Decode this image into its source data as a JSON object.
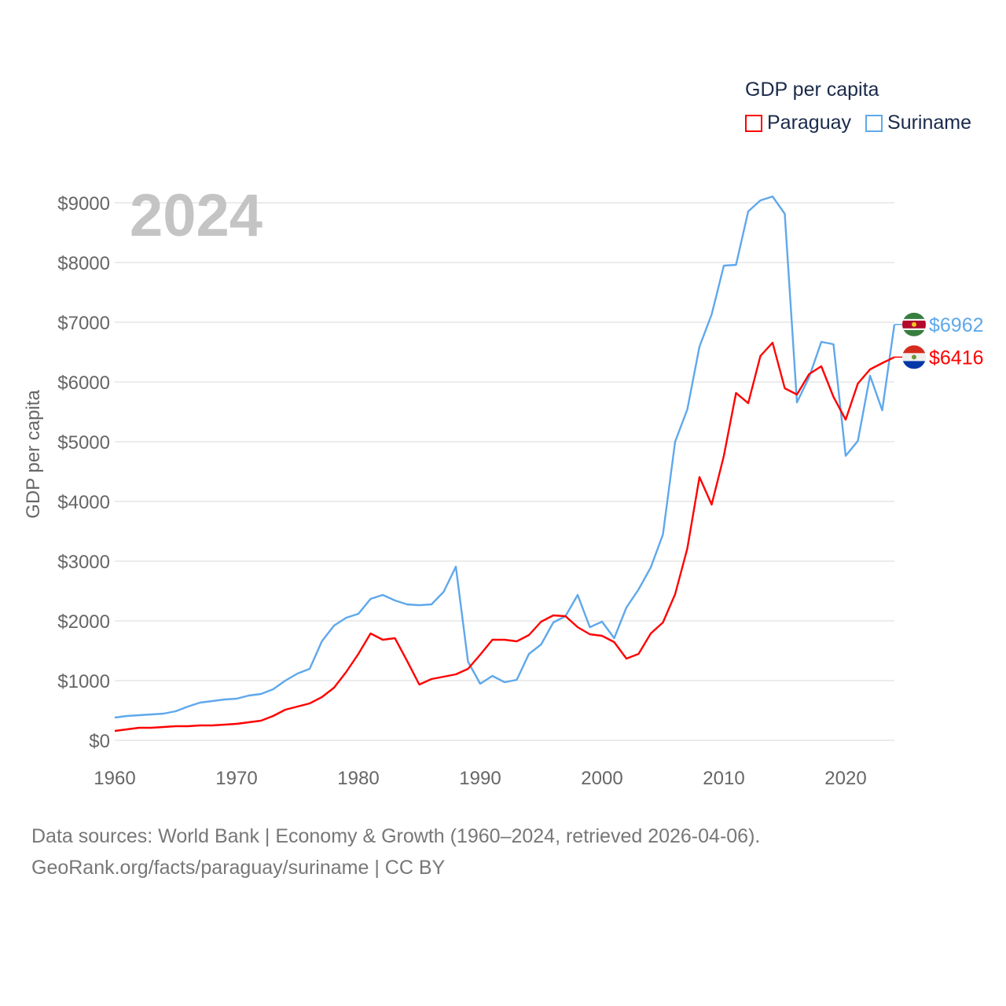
{
  "chart_data": {
    "type": "line",
    "title": "GDP per capita",
    "year_label": "2024",
    "xlabel": "",
    "ylabel": "GDP per capita",
    "xlim": [
      1960,
      2024
    ],
    "ylim": [
      0,
      9000
    ],
    "x_ticks": [
      1960,
      1970,
      1980,
      1990,
      2000,
      2010,
      2020
    ],
    "y_ticks": [
      0,
      1000,
      2000,
      3000,
      4000,
      5000,
      6000,
      7000,
      8000,
      9000
    ],
    "y_tick_labels": [
      "$0",
      "$1000",
      "$2000",
      "$3000",
      "$4000",
      "$5000",
      "$6000",
      "$7000",
      "$8000",
      "$9000"
    ],
    "grid": true,
    "legend_placement": "top-right",
    "x_start": 1960,
    "series": [
      {
        "name": "Paraguay",
        "color": "#ff0000",
        "end_label": "$6416",
        "values": [
          158,
          184,
          211,
          211,
          224,
          237,
          237,
          250,
          250,
          263,
          276,
          303,
          329,
          408,
          513,
          566,
          618,
          724,
          882,
          1145,
          1447,
          1789,
          1684,
          1711,
          1329,
          934,
          1026,
          1066,
          1105,
          1197,
          1434,
          1684,
          1684,
          1658,
          1763,
          1987,
          2092,
          2079,
          1895,
          1776,
          1750,
          1645,
          1368,
          1447,
          1789,
          1974,
          2447,
          3211,
          4408,
          3947,
          4763,
          5816,
          5645,
          6434,
          6658,
          5895,
          5789,
          6132,
          6263,
          5750,
          5368,
          5974,
          6211,
          6316,
          6416
        ]
      },
      {
        "name": "Suriname",
        "color": "#5ea8ec",
        "end_label": "$6962",
        "values": [
          382,
          408,
          421,
          434,
          447,
          487,
          566,
          632,
          658,
          684,
          697,
          750,
          776,
          855,
          1000,
          1118,
          1197,
          1658,
          1921,
          2053,
          2118,
          2368,
          2434,
          2342,
          2276,
          2263,
          2276,
          2487,
          2908,
          1316,
          947,
          1079,
          974,
          1013,
          1447,
          1605,
          1974,
          2079,
          2434,
          1895,
          1987,
          1711,
          2224,
          2526,
          2895,
          3447,
          5000,
          5539,
          6592,
          7132,
          7947,
          7961,
          8855,
          9039,
          9105,
          8816,
          5658,
          6079,
          6671,
          6632,
          4763,
          5013,
          6105,
          5526,
          6962
        ]
      }
    ]
  },
  "footer": {
    "line1": "Data sources: World Bank | Economy & Growth (1960–2024, retrieved 2026-04-06).",
    "line2": "GeoRank.org/facts/paraguay/suriname | CC BY"
  }
}
